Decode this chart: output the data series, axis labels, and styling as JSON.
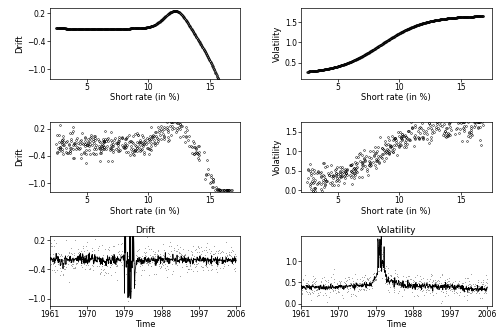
{
  "fig_width": 4.99,
  "fig_height": 3.36,
  "dpi": 100,
  "background_color": "#ffffff",
  "panel_bg": "#ffffff",
  "row1_drift_ylim": [
    -1.2,
    0.3
  ],
  "row1_drift_yticks": [
    -1.0,
    -0.4,
    0.2
  ],
  "row1_vol_ylim": [
    0.1,
    1.85
  ],
  "row1_vol_yticks": [
    0.5,
    1.0,
    1.5
  ],
  "row2_drift_ylim": [
    -1.2,
    0.35
  ],
  "row2_drift_yticks": [
    -1.0,
    -0.4,
    0.2
  ],
  "row2_vol_ylim": [
    -0.05,
    1.75
  ],
  "row2_vol_yticks": [
    0.0,
    0.5,
    1.0,
    1.5
  ],
  "row3_drift_ylim": [
    -1.15,
    0.3
  ],
  "row3_drift_yticks": [
    -1.0,
    -0.4,
    0.2
  ],
  "row3_vol_ylim": [
    -0.05,
    1.6
  ],
  "row3_vol_yticks": [
    0.0,
    0.5,
    1.0
  ],
  "xlim_rate": [
    2.0,
    17.5
  ],
  "xticks_rate": [
    5,
    10,
    15
  ],
  "xlim_time": [
    1961,
    2007
  ],
  "xticks_time": [
    1961,
    1970,
    1979,
    1988,
    1997,
    2006
  ],
  "xlabel_rate": "Short rate (in %)",
  "xlabel_time": "Time",
  "ylabel_drift": "Drift",
  "ylabel_vol": "Volatility",
  "title_drift": "Drift",
  "title_vol": "Volatility",
  "font_size": 6.0,
  "title_font_size": 6.5,
  "label_font_size": 6.0
}
